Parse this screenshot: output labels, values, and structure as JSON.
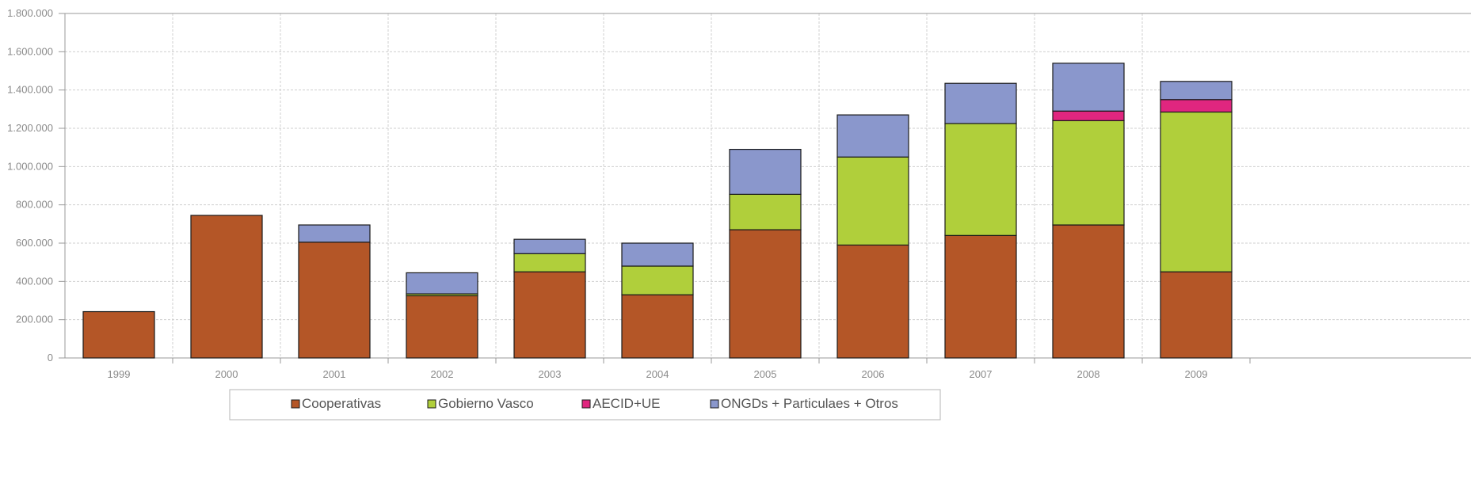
{
  "chart_data": {
    "type": "bar",
    "stacked": true,
    "categories": [
      "1999",
      "2000",
      "2001",
      "2002",
      "2003",
      "2004",
      "2005",
      "2006",
      "2007",
      "2008",
      "2009"
    ],
    "series": [
      {
        "name": "Cooperativas",
        "color": "#b45627",
        "values": [
          242000,
          745000,
          605000,
          325000,
          450000,
          330000,
          670000,
          590000,
          640000,
          695000,
          450000
        ]
      },
      {
        "name": "Gobierno Vasco",
        "color": "#b0cf3b",
        "values": [
          0,
          0,
          0,
          10000,
          95000,
          150000,
          185000,
          460000,
          585000,
          545000,
          835000
        ]
      },
      {
        "name": "AECID+UE",
        "color": "#e0267f",
        "values": [
          0,
          0,
          0,
          0,
          0,
          0,
          0,
          0,
          0,
          50000,
          65000
        ]
      },
      {
        "name": "ONGDs + Particulaes + Otros",
        "color": "#8a97cc",
        "values": [
          0,
          0,
          90000,
          110000,
          75000,
          120000,
          235000,
          220000,
          210000,
          250000,
          95000
        ]
      }
    ],
    "ylim": [
      0,
      1800000
    ],
    "yticks": [
      "0",
      "200.000",
      "400.000",
      "600.000",
      "800.000",
      "1.000.000",
      "1.200.000",
      "1.400.000",
      "1.600.000",
      "1.800.000"
    ],
    "grid": true,
    "legend_position": "bottom"
  }
}
